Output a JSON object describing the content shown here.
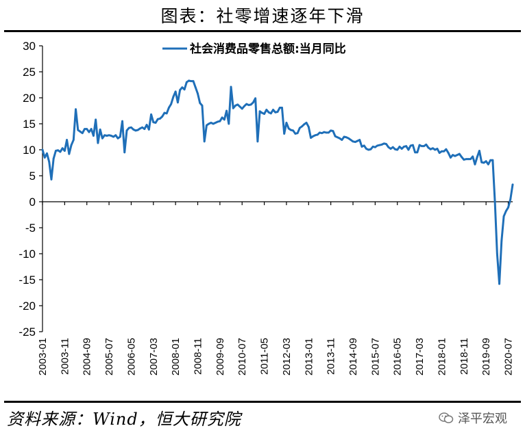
{
  "page": {
    "title": "图表：社零增速逐年下滑",
    "source": "资料来源：Wind，恒大研究院",
    "watermark": "泽平宏观"
  },
  "colors": {
    "line": "#1f6fb8",
    "axis": "#000000"
  },
  "chart_data": {
    "type": "line",
    "title": "图表：社零增速逐年下滑",
    "xlabel": "",
    "ylabel": "",
    "ylim": [
      -25,
      30
    ],
    "yticks": [
      30,
      25,
      20,
      15,
      10,
      5,
      0,
      -5,
      -10,
      -15,
      -20,
      -25
    ],
    "x_tick_labels": [
      "2003-01",
      "2003-11",
      "2004-09",
      "2005-07",
      "2006-05",
      "2007-03",
      "2008-01",
      "2008-11",
      "2009-09",
      "2010-07",
      "2011-05",
      "2012-03",
      "2013-01",
      "2013-11",
      "2014-09",
      "2015-07",
      "2016-05",
      "2017-03",
      "2018-01",
      "2018-11",
      "2019-09",
      "2020-07"
    ],
    "x_range": [
      "2003-01",
      "2020-09"
    ],
    "legend": "top",
    "series": [
      {
        "name": "社会消费品零售总额:当月同比",
        "x": [
          "2003-01",
          "2003-02",
          "2003-03",
          "2003-04",
          "2003-05",
          "2003-06",
          "2003-07",
          "2003-08",
          "2003-09",
          "2003-10",
          "2003-11",
          "2003-12",
          "2004-01",
          "2004-02",
          "2004-03",
          "2004-04",
          "2004-05",
          "2004-06",
          "2004-07",
          "2004-08",
          "2004-09",
          "2004-10",
          "2004-11",
          "2004-12",
          "2005-01",
          "2005-02",
          "2005-03",
          "2005-04",
          "2005-05",
          "2005-06",
          "2005-07",
          "2005-08",
          "2005-09",
          "2005-10",
          "2005-11",
          "2005-12",
          "2006-01",
          "2006-02",
          "2006-03",
          "2006-04",
          "2006-05",
          "2006-06",
          "2006-07",
          "2006-08",
          "2006-09",
          "2006-10",
          "2006-11",
          "2006-12",
          "2007-01",
          "2007-02",
          "2007-03",
          "2007-04",
          "2007-05",
          "2007-06",
          "2007-07",
          "2007-08",
          "2007-09",
          "2007-10",
          "2007-11",
          "2007-12",
          "2008-01",
          "2008-02",
          "2008-03",
          "2008-04",
          "2008-05",
          "2008-06",
          "2008-07",
          "2008-08",
          "2008-09",
          "2008-10",
          "2008-11",
          "2008-12",
          "2009-01",
          "2009-02",
          "2009-03",
          "2009-04",
          "2009-05",
          "2009-06",
          "2009-07",
          "2009-08",
          "2009-09",
          "2009-10",
          "2009-11",
          "2009-12",
          "2010-01",
          "2010-02",
          "2010-03",
          "2010-04",
          "2010-05",
          "2010-06",
          "2010-07",
          "2010-08",
          "2010-09",
          "2010-10",
          "2010-11",
          "2010-12",
          "2011-01",
          "2011-02",
          "2011-03",
          "2011-04",
          "2011-05",
          "2011-06",
          "2011-07",
          "2011-08",
          "2011-09",
          "2011-10",
          "2011-11",
          "2011-12",
          "2012-01",
          "2012-02",
          "2012-03",
          "2012-04",
          "2012-05",
          "2012-06",
          "2012-07",
          "2012-08",
          "2012-09",
          "2012-10",
          "2012-11",
          "2012-12",
          "2013-01",
          "2013-02",
          "2013-03",
          "2013-04",
          "2013-05",
          "2013-06",
          "2013-07",
          "2013-08",
          "2013-09",
          "2013-10",
          "2013-11",
          "2013-12",
          "2014-01",
          "2014-02",
          "2014-03",
          "2014-04",
          "2014-05",
          "2014-06",
          "2014-07",
          "2014-08",
          "2014-09",
          "2014-10",
          "2014-11",
          "2014-12",
          "2015-01",
          "2015-02",
          "2015-03",
          "2015-04",
          "2015-05",
          "2015-06",
          "2015-07",
          "2015-08",
          "2015-09",
          "2015-10",
          "2015-11",
          "2015-12",
          "2016-01",
          "2016-02",
          "2016-03",
          "2016-04",
          "2016-05",
          "2016-06",
          "2016-07",
          "2016-08",
          "2016-09",
          "2016-10",
          "2016-11",
          "2016-12",
          "2017-01",
          "2017-02",
          "2017-03",
          "2017-04",
          "2017-05",
          "2017-06",
          "2017-07",
          "2017-08",
          "2017-09",
          "2017-10",
          "2017-11",
          "2017-12",
          "2018-01",
          "2018-02",
          "2018-03",
          "2018-04",
          "2018-05",
          "2018-06",
          "2018-07",
          "2018-08",
          "2018-09",
          "2018-10",
          "2018-11",
          "2018-12",
          "2019-01",
          "2019-02",
          "2019-03",
          "2019-04",
          "2019-05",
          "2019-06",
          "2019-07",
          "2019-08",
          "2019-09",
          "2019-10",
          "2019-11",
          "2019-12",
          "2020-01",
          "2020-02",
          "2020-03",
          "2020-04",
          "2020-05",
          "2020-06",
          "2020-07",
          "2020-08",
          "2020-09"
        ],
        "values": [
          10.0,
          8.5,
          9.3,
          7.7,
          4.3,
          8.3,
          9.8,
          9.9,
          9.6,
          10.3,
          9.8,
          11.9,
          9.2,
          10.9,
          11.9,
          17.8,
          13.8,
          13.5,
          13.2,
          14.0,
          14.0,
          13.4,
          14.0,
          12.7,
          15.8,
          11.3,
          13.9,
          12.2,
          12.8,
          12.7,
          12.8,
          12.7,
          12.5,
          12.8,
          12.2,
          12.5,
          15.5,
          9.5,
          13.7,
          14.2,
          14.3,
          13.9,
          13.7,
          13.8,
          14.1,
          14.3,
          14.0,
          14.8,
          13.9,
          16.8,
          15.3,
          15.2,
          15.9,
          16.0,
          16.4,
          17.1,
          17.0,
          18.1,
          18.8,
          20.2,
          21.2,
          19.1,
          21.5,
          22.0,
          21.6,
          23.0,
          23.3,
          23.2,
          23.2,
          22.0,
          20.8,
          19.0,
          18.5,
          11.6,
          14.7,
          15.0,
          15.2,
          15.0,
          15.2,
          15.4,
          15.5,
          16.2,
          15.8,
          17.5,
          15.0,
          22.1,
          18.0,
          18.5,
          18.7,
          18.3,
          17.9,
          18.4,
          18.8,
          18.6,
          18.7,
          19.1,
          19.9,
          11.6,
          17.4,
          17.1,
          16.9,
          17.7,
          17.2,
          17.0,
          17.7,
          17.2,
          17.3,
          18.1,
          18.1,
          13.1,
          15.2,
          14.1,
          13.8,
          13.7,
          13.1,
          13.2,
          14.2,
          14.5,
          14.9,
          15.2,
          14.4,
          12.3,
          12.6,
          12.8,
          12.9,
          13.3,
          13.2,
          13.4,
          13.3,
          13.3,
          13.7,
          13.6,
          12.6,
          12.4,
          12.2,
          11.9,
          12.5,
          12.4,
          12.2,
          11.9,
          11.6,
          11.5,
          11.7,
          11.9,
          10.6,
          10.8,
          10.2,
          10.0,
          10.1,
          10.6,
          10.5,
          10.8,
          10.9,
          11.0,
          11.2,
          11.1,
          10.5,
          10.2,
          10.5,
          10.1,
          10.0,
          10.6,
          10.2,
          10.6,
          10.7,
          10.0,
          10.8,
          10.9,
          9.5,
          9.5,
          10.9,
          10.7,
          10.7,
          11.0,
          10.4,
          10.1,
          10.3,
          10.0,
          10.2,
          9.4,
          9.7,
          9.7,
          10.1,
          9.4,
          8.5,
          9.0,
          8.8,
          9.0,
          9.2,
          8.6,
          8.1,
          8.2,
          8.2,
          8.2,
          8.7,
          7.2,
          8.6,
          9.8,
          7.6,
          7.5,
          7.8,
          7.2,
          8.0,
          8.0,
          0.0,
          -10.0,
          -15.8,
          -7.5,
          -2.8,
          -1.8,
          -1.1,
          0.5,
          3.3
        ]
      }
    ]
  }
}
